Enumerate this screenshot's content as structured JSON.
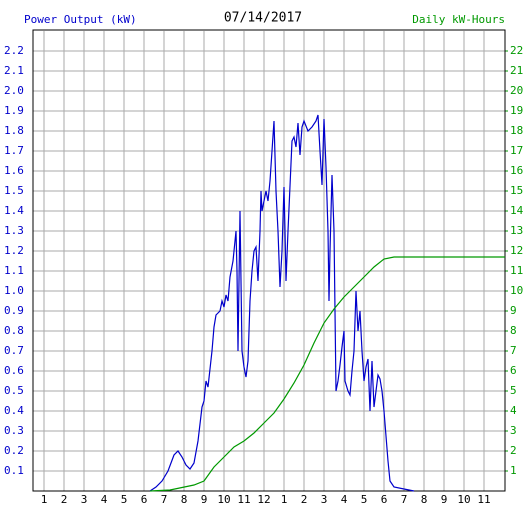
{
  "chart_data": {
    "type": "line",
    "title": "07/14/2017",
    "ylabel": "Power Output (kW)",
    "y2label": "Daily kW-Hours",
    "xlim": [
      0.45,
      24.05
    ],
    "xticks": [
      1,
      2,
      3,
      4,
      5,
      6,
      7,
      8,
      9,
      10,
      11,
      12,
      {
        "value": 13,
        "label": "1"
      },
      {
        "value": 14,
        "label": "2"
      },
      {
        "value": 15,
        "label": "3"
      },
      {
        "value": 16,
        "label": "4"
      },
      {
        "value": 17,
        "label": "5"
      },
      {
        "value": 18,
        "label": "6"
      },
      {
        "value": 19,
        "label": "7"
      },
      {
        "value": 20,
        "label": "8"
      },
      {
        "value": 21,
        "label": "9"
      },
      {
        "value": 22,
        "label": "10"
      },
      {
        "value": 23,
        "label": "11"
      }
    ],
    "ylim": [
      0,
      2.3
    ],
    "yticks": [
      0.1,
      0.2,
      0.3,
      0.4,
      0.5,
      0.6,
      0.7,
      0.8,
      0.9,
      {
        "value": 1,
        "label": "1.0"
      },
      1.1,
      1.2,
      1.3,
      1.4,
      1.5,
      1.6,
      1.7,
      1.8,
      1.9,
      {
        "value": 2,
        "label": "2.0"
      },
      2.1,
      2.2
    ],
    "y2lim": [
      0,
      23
    ],
    "y2ticks": [
      1,
      2,
      3,
      4,
      5,
      6,
      7,
      8,
      9,
      10,
      11,
      12,
      13,
      14,
      15,
      16,
      17,
      18,
      19,
      20,
      21,
      22
    ],
    "grid": true,
    "series": [
      {
        "name": "Power Output (kW)",
        "color": "#0000cc",
        "x": [
          6.3,
          6.6,
          6.9,
          7.2,
          7.5,
          7.7,
          7.9,
          8.1,
          8.3,
          8.5,
          8.7,
          8.9,
          9.0,
          9.1,
          9.2,
          9.4,
          9.5,
          9.6,
          9.8,
          9.9,
          10.0,
          10.1,
          10.2,
          10.3,
          10.45,
          10.55,
          10.6,
          10.65,
          10.7,
          10.8,
          10.9,
          11.0,
          11.1,
          11.2,
          11.3,
          11.4,
          11.5,
          11.6,
          11.7,
          11.8,
          11.85,
          11.9,
          12.0,
          12.1,
          12.2,
          12.3,
          12.4,
          12.5,
          12.6,
          12.7,
          12.8,
          12.9,
          13.0,
          13.05,
          13.1,
          13.2,
          13.4,
          13.5,
          13.6,
          13.7,
          13.8,
          13.9,
          14.0,
          14.2,
          14.4,
          14.6,
          14.7,
          14.8,
          14.9,
          15.0,
          15.1,
          15.2,
          15.25,
          15.3,
          15.4,
          15.5,
          15.6,
          15.7,
          15.8,
          15.9,
          16.0,
          16.05,
          16.2,
          16.3,
          16.4,
          16.5,
          16.6,
          16.7,
          16.8,
          16.9,
          17.0,
          17.1,
          17.2,
          17.3,
          17.4,
          17.5,
          17.6,
          17.7,
          17.8,
          17.9,
          18.0,
          18.2,
          18.3,
          18.5,
          19.0,
          19.5
        ],
        "values": [
          0,
          0.02,
          0.05,
          0.1,
          0.18,
          0.2,
          0.17,
          0.13,
          0.11,
          0.14,
          0.25,
          0.42,
          0.45,
          0.55,
          0.52,
          0.7,
          0.82,
          0.88,
          0.9,
          0.95,
          0.92,
          0.98,
          0.95,
          1.07,
          1.15,
          1.25,
          1.3,
          1.1,
          0.7,
          1.4,
          0.7,
          0.62,
          0.57,
          0.65,
          0.95,
          1.1,
          1.2,
          1.22,
          1.05,
          1.3,
          1.5,
          1.4,
          1.45,
          1.5,
          1.45,
          1.55,
          1.7,
          1.85,
          1.5,
          1.3,
          1.02,
          1.2,
          1.52,
          1.3,
          1.05,
          1.3,
          1.75,
          1.77,
          1.72,
          1.84,
          1.68,
          1.82,
          1.85,
          1.8,
          1.82,
          1.85,
          1.88,
          1.7,
          1.53,
          1.86,
          1.62,
          1.3,
          0.95,
          1.2,
          1.58,
          1.3,
          0.5,
          0.55,
          0.63,
          0.72,
          0.8,
          0.55,
          0.5,
          0.48,
          0.6,
          0.7,
          1.0,
          0.8,
          0.9,
          0.7,
          0.55,
          0.62,
          0.66,
          0.4,
          0.65,
          0.42,
          0.5,
          0.58,
          0.56,
          0.5,
          0.4,
          0.15,
          0.05,
          0.02,
          0.01,
          0
        ]
      },
      {
        "name": "Daily kW-Hours",
        "color": "#009900",
        "axis": "y2",
        "x": [
          6.3,
          7.3,
          8.5,
          9.0,
          9.5,
          10.0,
          10.5,
          11.0,
          11.5,
          12.0,
          12.5,
          13.0,
          13.5,
          14.0,
          14.5,
          15.0,
          15.5,
          16.0,
          16.5,
          17.0,
          17.5,
          18.0,
          18.5,
          19.0,
          20.0,
          24.05
        ],
        "values": [
          0,
          0.05,
          0.3,
          0.5,
          1.2,
          1.7,
          2.2,
          2.5,
          2.9,
          3.4,
          3.9,
          4.6,
          5.4,
          6.3,
          7.4,
          8.4,
          9.1,
          9.7,
          10.2,
          10.7,
          11.2,
          11.6,
          11.7,
          11.7,
          11.7,
          11.7
        ]
      }
    ]
  }
}
